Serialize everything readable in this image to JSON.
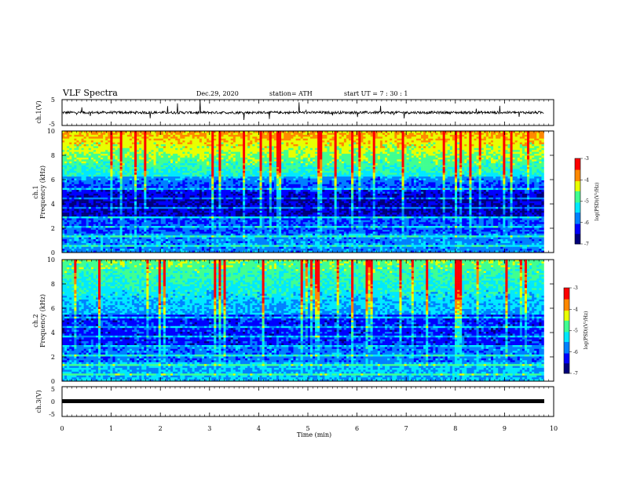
{
  "header": {
    "title": "VLF Spectra",
    "date": "Dec.29, 2020",
    "station": "station= ATH",
    "start": "start  UT  =   7 : 30 : 1"
  },
  "chart_data": [
    {
      "type": "line",
      "ylabel": "ch.1(V)",
      "ylim": [
        -5,
        5
      ],
      "yticks": [
        "5",
        "-5"
      ],
      "description_values": {
        "baseline_v": 0,
        "noise_v": 1
      }
    },
    {
      "type": "heatmap",
      "ylabel": "ch.1",
      "ylabel2": "Frequency  (kHz)",
      "xlim": [
        0,
        10
      ],
      "ylim": [
        0,
        10
      ],
      "yticks": [
        "0",
        "2",
        "4",
        "6",
        "8",
        "10"
      ],
      "colorbar": {
        "label": "log(PSD)(V²/Hz)",
        "ticks": [
          "-3",
          "-4",
          "-5",
          "-6",
          "-7"
        ],
        "range": [
          -7,
          -3
        ]
      }
    },
    {
      "type": "heatmap",
      "ylabel": "ch.2",
      "ylabel2": "Frequency  (kHz)",
      "xlim": [
        0,
        10
      ],
      "ylim": [
        0,
        10
      ],
      "yticks": [
        "0",
        "2",
        "4",
        "6",
        "8",
        "10"
      ],
      "colorbar": {
        "label": "log(PSD)(V²/Hz)",
        "ticks": [
          "-3",
          "-4",
          "-5",
          "-6",
          "-7"
        ],
        "range": [
          -7,
          -3
        ]
      }
    },
    {
      "type": "line",
      "ylabel": "ch.3(V)",
      "ylim": [
        -5,
        5
      ],
      "yticks": [
        "5",
        "0",
        "-5"
      ],
      "constant_value_v": 0
    }
  ],
  "xaxis": {
    "label": "Time  (min)",
    "ticks": [
      "0",
      "1",
      "2",
      "3",
      "4",
      "5",
      "6",
      "7",
      "8",
      "9",
      "10"
    ],
    "range": [
      0,
      10
    ],
    "data_end_min": 9.8
  },
  "colors": {
    "scale": [
      "#00007a",
      "#0000ff",
      "#0080ff",
      "#00e8ff",
      "#40ff90",
      "#e8ff00",
      "#ff8800",
      "#ff0000",
      "#ffd0d0"
    ]
  }
}
